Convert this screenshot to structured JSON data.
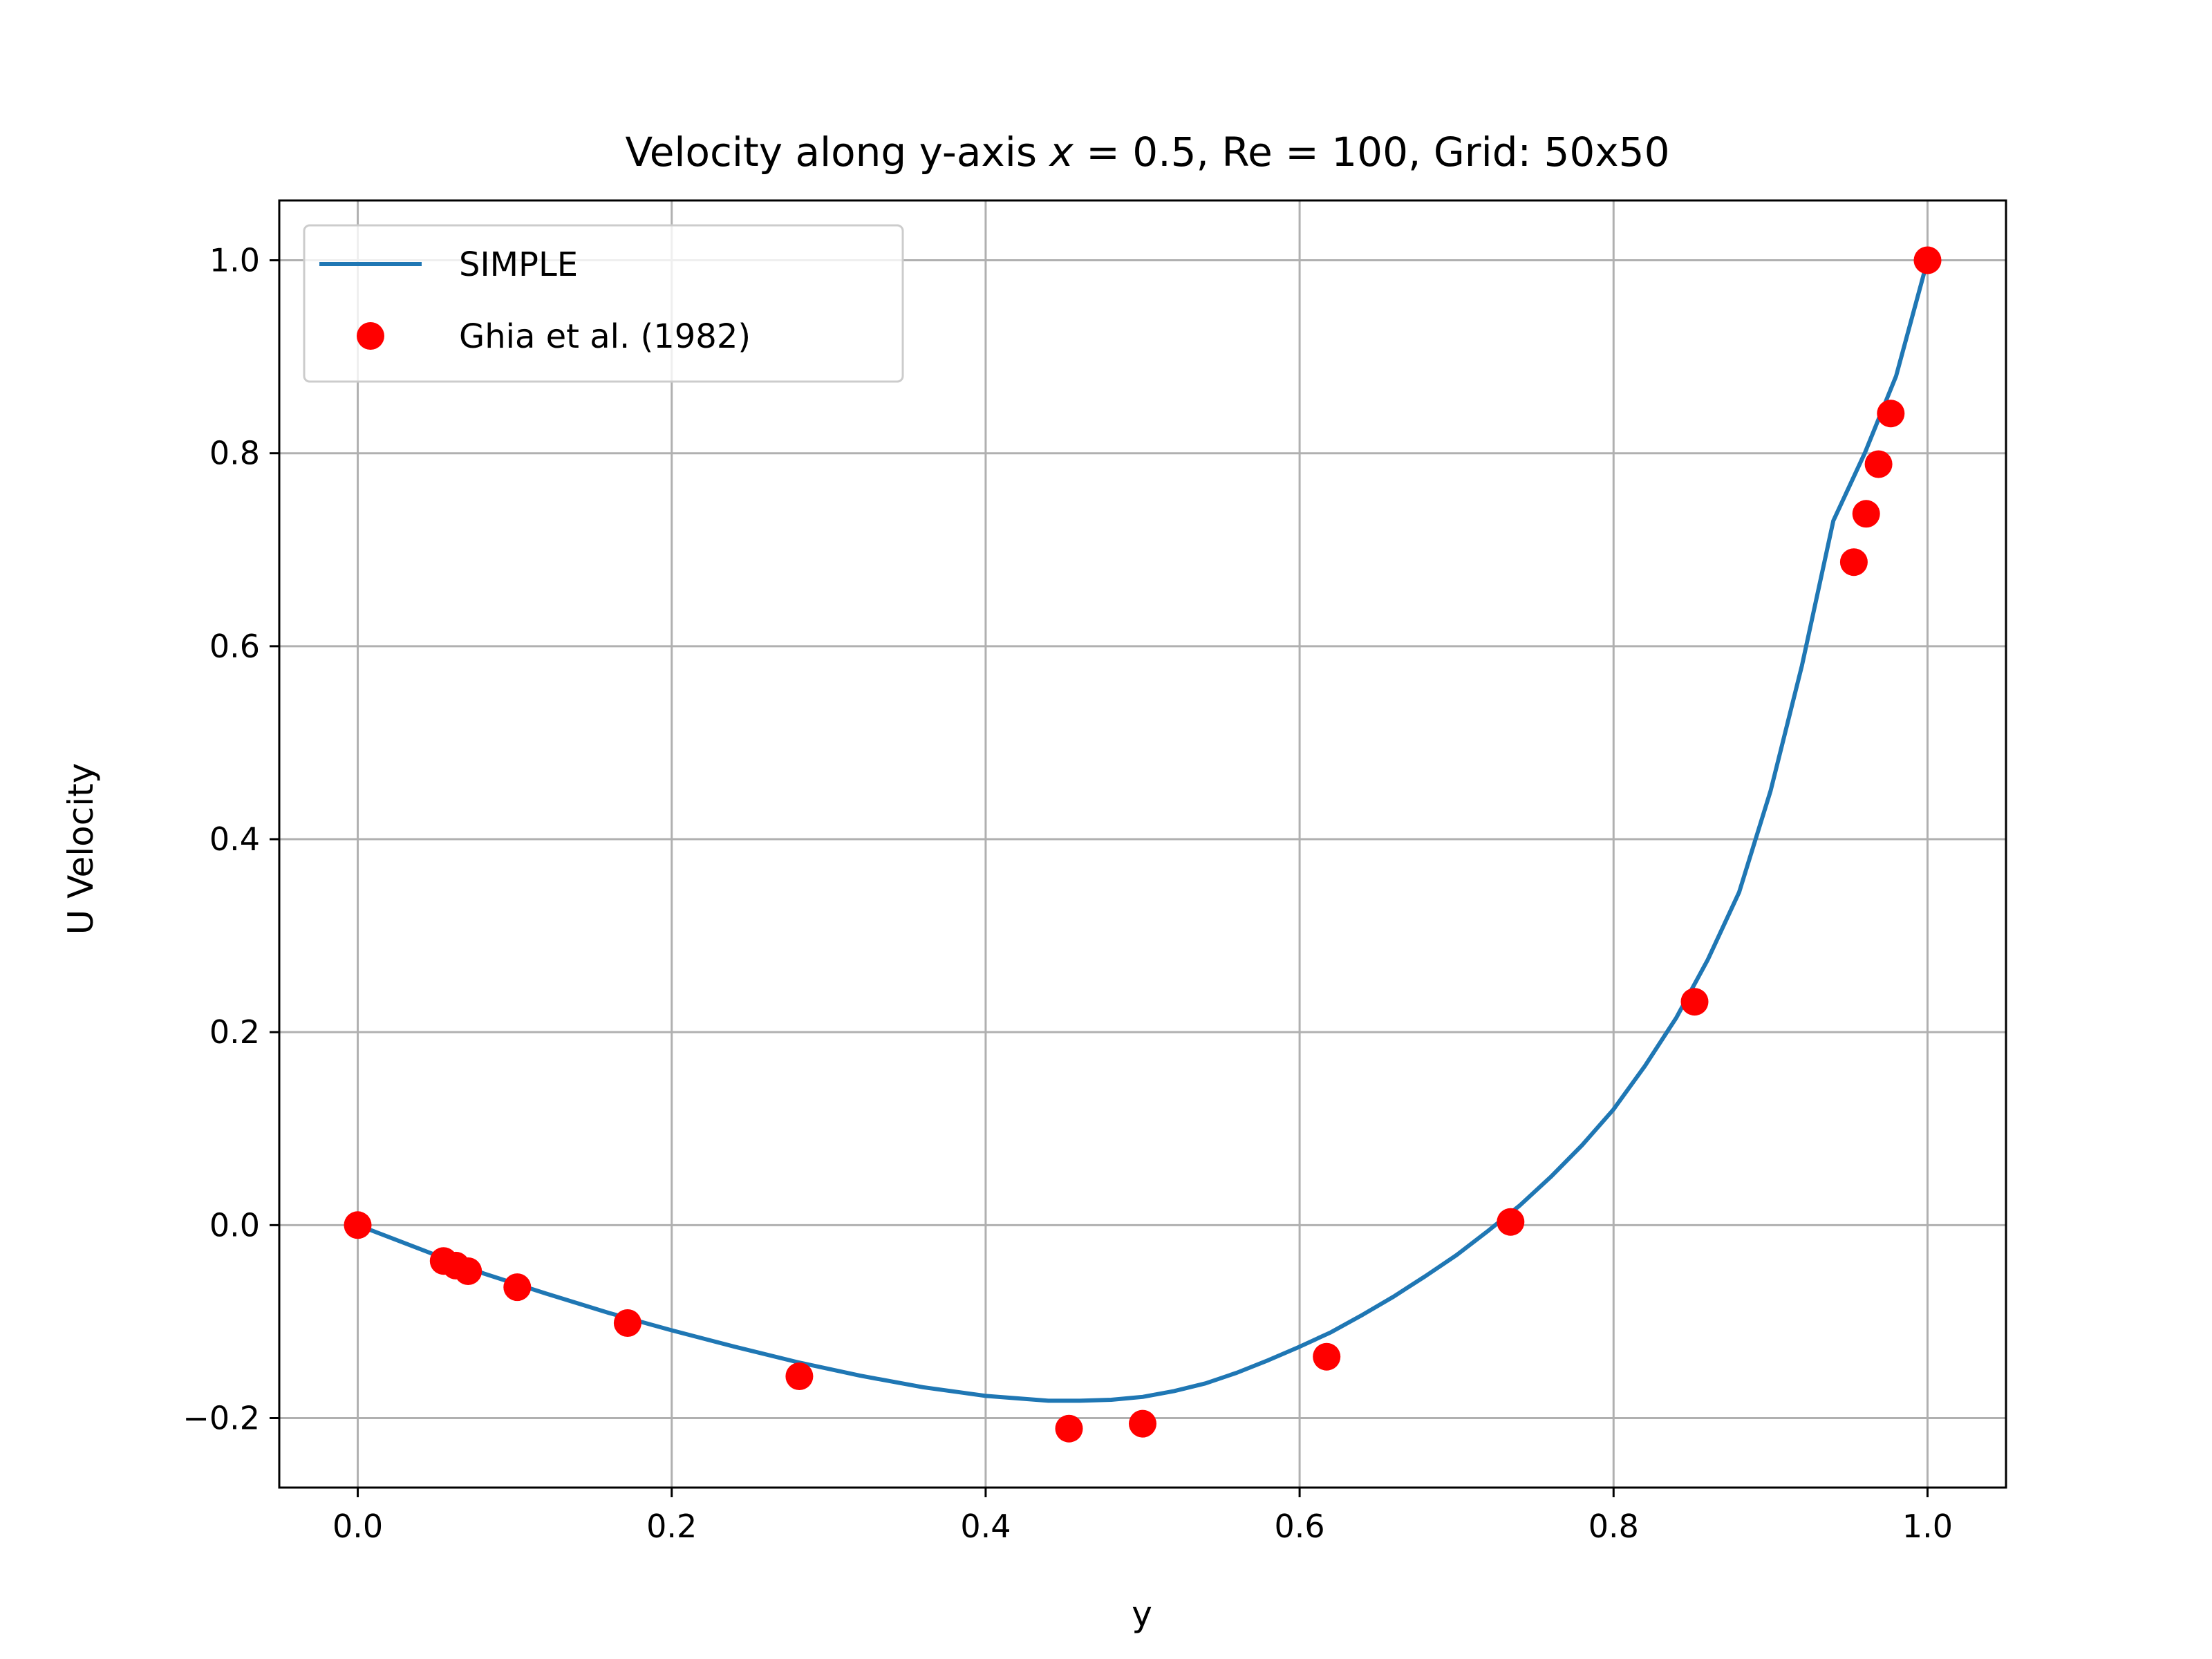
{
  "chart_data": {
    "type": "line",
    "title": "Velocity along y-axis x = 0.5, Re = 100, Grid: 50x50",
    "title_parts": {
      "prefix": "Velocity along y-axis ",
      "var": "x",
      "eq": " = 0.5, Re = 100, Grid: 50x50"
    },
    "xlabel": "y",
    "ylabel": "U Velocity",
    "xlim": [
      -0.05,
      1.05
    ],
    "ylim": [
      -0.272,
      1.062
    ],
    "xticks": [
      0.0,
      0.2,
      0.4,
      0.6,
      0.8,
      1.0
    ],
    "xtick_labels": [
      "0.0",
      "0.2",
      "0.4",
      "0.6",
      "0.8",
      "1.0"
    ],
    "yticks": [
      -0.2,
      0.0,
      0.2,
      0.4,
      0.6,
      0.8,
      1.0
    ],
    "ytick_labels": [
      "−0.2",
      "0.0",
      "0.2",
      "0.4",
      "0.6",
      "0.8",
      "1.0"
    ],
    "grid": true,
    "legend_position": "upper-left",
    "series": [
      {
        "name": "SIMPLE",
        "style": "line",
        "color": "#1f77b4",
        "x": [
          0.0,
          0.04,
          0.08,
          0.12,
          0.16,
          0.2,
          0.24,
          0.28,
          0.32,
          0.36,
          0.4,
          0.44,
          0.46,
          0.48,
          0.5,
          0.52,
          0.54,
          0.56,
          0.58,
          0.6,
          0.62,
          0.64,
          0.66,
          0.68,
          0.7,
          0.72,
          0.74,
          0.76,
          0.78,
          0.8,
          0.82,
          0.84,
          0.86,
          0.88,
          0.9,
          0.92,
          0.94,
          0.96,
          0.98,
          1.0
        ],
        "y": [
          0.0,
          -0.025,
          -0.05,
          -0.071,
          -0.091,
          -0.109,
          -0.126,
          -0.142,
          -0.156,
          -0.168,
          -0.177,
          -0.182,
          -0.182,
          -0.181,
          -0.178,
          -0.172,
          -0.164,
          -0.153,
          -0.14,
          -0.126,
          -0.111,
          -0.093,
          -0.074,
          -0.053,
          -0.031,
          -0.006,
          0.02,
          0.05,
          0.083,
          0.12,
          0.165,
          0.215,
          0.275,
          0.345,
          0.45,
          0.58,
          0.73,
          0.8,
          0.88,
          1.0
        ]
      },
      {
        "name": "Ghia et al. (1982)",
        "style": "markers",
        "color": "#ff0000",
        "x": [
          0.0,
          0.0547,
          0.0625,
          0.0703,
          0.1016,
          0.1719,
          0.2813,
          0.4531,
          0.5,
          0.6172,
          0.7344,
          0.8516,
          0.9531,
          0.9609,
          0.9688,
          0.9766,
          1.0
        ],
        "y": [
          0.0,
          -0.03717,
          -0.04192,
          -0.04775,
          -0.06434,
          -0.1015,
          -0.15662,
          -0.2109,
          -0.20581,
          -0.13641,
          0.00332,
          0.23151,
          0.68717,
          0.73722,
          0.78871,
          0.84123,
          1.0
        ]
      }
    ]
  }
}
